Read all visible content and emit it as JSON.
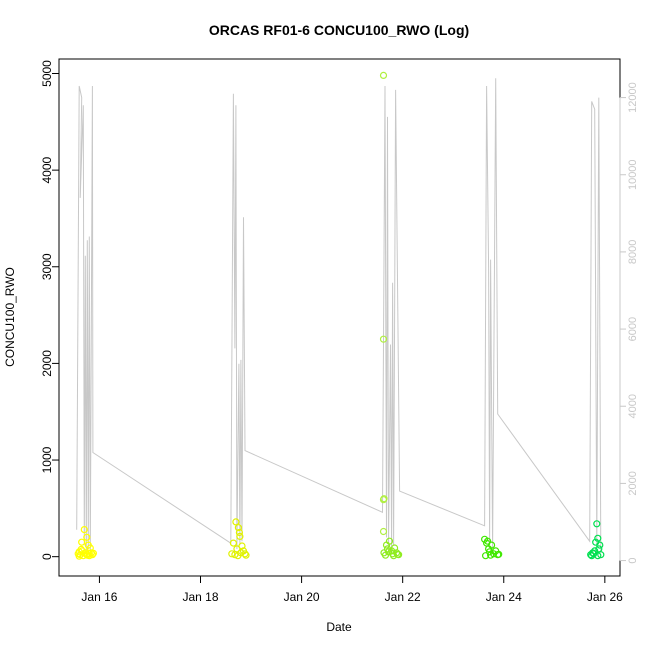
{
  "chart_data": {
    "type": "scatter",
    "title": "ORCAS RF01-6 CONCU100_RWO (Log)",
    "xlabel": "Date",
    "ylabel": "CONCU100_RWO",
    "xlim": [
      15.2,
      26.3
    ],
    "ylim": [
      -200,
      5150
    ],
    "y2lim": [
      -400,
      13000
    ],
    "x_ticks": [
      {
        "value": 16,
        "label": "Jan 16"
      },
      {
        "value": 18,
        "label": "Jan 18"
      },
      {
        "value": 20,
        "label": "Jan 20"
      },
      {
        "value": 22,
        "label": "Jan 22"
      },
      {
        "value": 24,
        "label": "Jan 24"
      },
      {
        "value": 26,
        "label": "Jan 26"
      }
    ],
    "y_ticks": [
      0,
      1000,
      2000,
      3000,
      4000,
      5000
    ],
    "y2_ticks": [
      0,
      2000,
      4000,
      6000,
      8000,
      10000,
      12000
    ],
    "background_line": {
      "axis": "right",
      "color": "#c8c8c8",
      "points": [
        [
          15.55,
          800
        ],
        [
          15.6,
          12300
        ],
        [
          15.65,
          12000
        ],
        [
          15.62,
          9400
        ],
        [
          15.68,
          11800
        ],
        [
          15.7,
          400
        ],
        [
          15.72,
          7900
        ],
        [
          15.74,
          200
        ],
        [
          15.76,
          8300
        ],
        [
          15.78,
          300
        ],
        [
          15.8,
          8400
        ],
        [
          15.82,
          200
        ],
        [
          15.86,
          12300
        ],
        [
          15.87,
          2800
        ],
        [
          18.6,
          450
        ],
        [
          18.65,
          12100
        ],
        [
          18.68,
          5500
        ],
        [
          18.7,
          11800
        ],
        [
          18.72,
          300
        ],
        [
          18.76,
          5100
        ],
        [
          18.78,
          400
        ],
        [
          18.8,
          5200
        ],
        [
          18.82,
          500
        ],
        [
          18.85,
          8900
        ],
        [
          18.88,
          2850
        ],
        [
          21.6,
          1250
        ],
        [
          21.65,
          12300
        ],
        [
          21.68,
          600
        ],
        [
          21.7,
          11500
        ],
        [
          21.72,
          300
        ],
        [
          21.76,
          5600
        ],
        [
          21.78,
          200
        ],
        [
          21.8,
          7200
        ],
        [
          21.82,
          400
        ],
        [
          21.86,
          12200
        ],
        [
          21.94,
          1800
        ],
        [
          23.62,
          900
        ],
        [
          23.66,
          12300
        ],
        [
          23.7,
          7600
        ],
        [
          23.72,
          400
        ],
        [
          23.74,
          7800
        ],
        [
          23.78,
          300
        ],
        [
          23.84,
          12500
        ],
        [
          23.88,
          3800
        ],
        [
          25.7,
          500
        ],
        [
          25.74,
          11900
        ],
        [
          25.8,
          11700
        ],
        [
          25.84,
          400
        ],
        [
          25.88,
          12000
        ],
        [
          25.92,
          200
        ]
      ]
    },
    "series": [
      {
        "color": "#ffff00",
        "points": [
          [
            15.58,
            30
          ],
          [
            15.6,
            50
          ],
          [
            15.62,
            20
          ],
          [
            15.65,
            150
          ],
          [
            15.66,
            60
          ],
          [
            15.7,
            280
          ],
          [
            15.72,
            40
          ],
          [
            15.75,
            200
          ],
          [
            15.78,
            120
          ],
          [
            15.8,
            30
          ],
          [
            15.82,
            90
          ],
          [
            15.84,
            40
          ],
          [
            15.86,
            20
          ],
          [
            15.6,
            5
          ],
          [
            15.68,
            10
          ],
          [
            15.76,
            15
          ],
          [
            15.88,
            35
          ],
          [
            15.64,
            75
          ],
          [
            15.74,
            25
          ],
          [
            15.8,
            10
          ]
        ]
      },
      {
        "color": "#e0f200",
        "points": [
          [
            18.65,
            140
          ],
          [
            18.7,
            360
          ],
          [
            18.72,
            80
          ],
          [
            18.75,
            300
          ],
          [
            18.78,
            210
          ],
          [
            18.8,
            40
          ],
          [
            18.82,
            110
          ],
          [
            18.85,
            60
          ],
          [
            18.68,
            20
          ],
          [
            18.88,
            30
          ],
          [
            18.62,
            30
          ],
          [
            18.74,
            10
          ],
          [
            18.9,
            15
          ],
          [
            18.77,
            250
          ]
        ]
      },
      {
        "color": "#b0f040",
        "points": [
          [
            21.62,
            4980
          ],
          [
            21.62,
            2250
          ],
          [
            21.62,
            590
          ],
          [
            21.63,
            600
          ],
          [
            21.62,
            260
          ]
        ]
      },
      {
        "color": "#90ec20",
        "points": [
          [
            21.63,
            40
          ],
          [
            21.68,
            120
          ],
          [
            21.7,
            80
          ],
          [
            21.74,
            160
          ],
          [
            21.78,
            60
          ],
          [
            21.8,
            30
          ],
          [
            21.84,
            90
          ],
          [
            21.88,
            40
          ],
          [
            21.92,
            20
          ],
          [
            21.66,
            15
          ],
          [
            21.82,
            10
          ],
          [
            21.9,
            25
          ],
          [
            21.72,
            50
          ]
        ]
      },
      {
        "color": "#40e800",
        "points": [
          [
            23.62,
            180
          ],
          [
            23.68,
            160
          ],
          [
            23.7,
            80
          ],
          [
            23.72,
            50
          ],
          [
            23.76,
            120
          ],
          [
            23.8,
            30
          ],
          [
            23.84,
            60
          ],
          [
            23.88,
            20
          ],
          [
            23.64,
            10
          ],
          [
            23.74,
            15
          ],
          [
            23.9,
            25
          ],
          [
            23.66,
            140
          ]
        ]
      },
      {
        "color": "#00e050",
        "points": [
          [
            25.72,
            20
          ],
          [
            25.76,
            40
          ],
          [
            25.8,
            60
          ],
          [
            25.84,
            340
          ],
          [
            25.86,
            190
          ],
          [
            25.88,
            80
          ],
          [
            25.9,
            120
          ],
          [
            25.82,
            150
          ],
          [
            25.78,
            30
          ],
          [
            25.92,
            20
          ],
          [
            25.74,
            10
          ],
          [
            25.86,
            10
          ]
        ]
      }
    ]
  }
}
